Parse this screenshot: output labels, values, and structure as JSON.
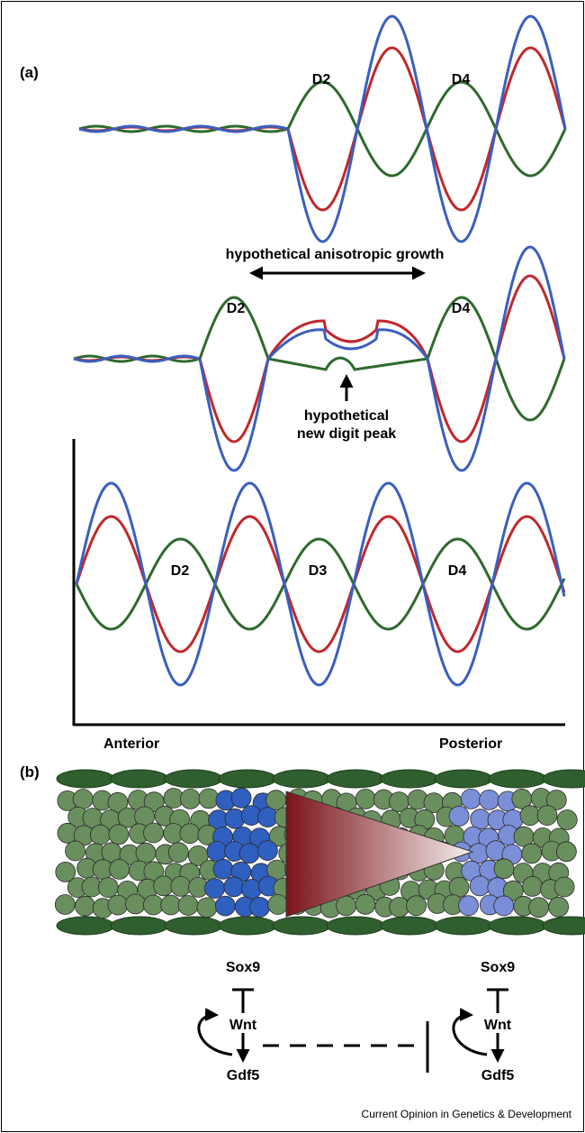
{
  "panel_a": {
    "label": "(a)",
    "row1": {
      "labels": [
        "D2",
        "D4"
      ]
    },
    "row2": {
      "growth": "hypothetical anisotropic growth",
      "labels": [
        "D2",
        "D4"
      ],
      "new_peak": [
        "hypothetical",
        "new digit peak"
      ]
    },
    "row3": {
      "labels": [
        "D2",
        "D3",
        "D4"
      ],
      "anterior": "Anterior",
      "posterior": "Posterior"
    }
  },
  "panel_b": {
    "label": "(b)",
    "left": {
      "sox9": "Sox9",
      "wnt": "Wnt",
      "gdf5": "Gdf5"
    },
    "right": {
      "sox9": "Sox9",
      "wnt": "Wnt",
      "gdf5": "Gdf5"
    }
  },
  "footer": "Current Opinion in Genetics & Development"
}
